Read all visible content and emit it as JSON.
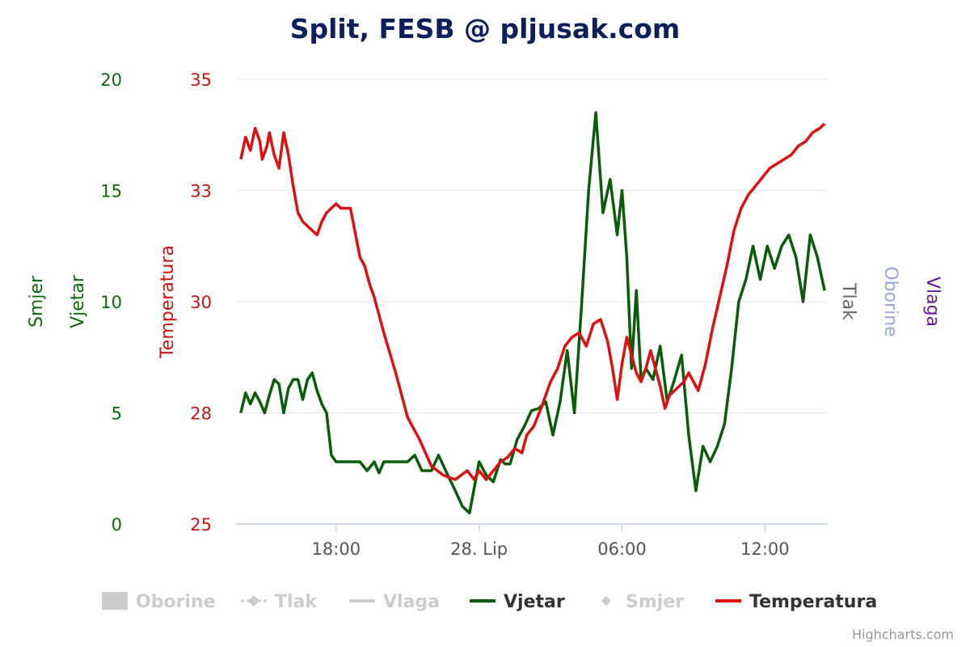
{
  "chart_data": {
    "type": "line",
    "title": "Split, FESB @ pljusak.com",
    "credits": "Highcharts.com",
    "x_ticks": [
      "18:00",
      "28. Lip",
      "06:00",
      "12:00"
    ],
    "axes": {
      "smjer": {
        "title": "Smjer",
        "color": "#0a6b0a",
        "ticks": [
          "0",
          "5",
          "10",
          "15",
          "20"
        ],
        "range": [
          0,
          20
        ]
      },
      "vjetar": {
        "title": "Vjetar",
        "color": "#0a6b0a",
        "range": [
          0,
          20
        ]
      },
      "temperatura": {
        "title": "Temperatura",
        "color": "#cc1111",
        "ticks": [
          "25",
          "28",
          "30",
          "33",
          "35"
        ],
        "range": [
          25,
          35
        ]
      },
      "tlak": {
        "title": "Tlak",
        "color": "#666666"
      },
      "oborine": {
        "title": "Oborine",
        "color": "#9aa6d6"
      },
      "vlaga": {
        "title": "Vlaga",
        "color": "#6a1a9a"
      }
    },
    "legend": [
      {
        "name": "Oborine",
        "active": false,
        "symbol": "rect",
        "color": "#cccccc"
      },
      {
        "name": "Tlak",
        "active": false,
        "symbol": "dash-diamond",
        "color": "#cccccc"
      },
      {
        "name": "Vlaga",
        "active": false,
        "symbol": "line",
        "color": "#cccccc"
      },
      {
        "name": "Vjetar",
        "active": true,
        "symbol": "line",
        "color": "#0a5c0a"
      },
      {
        "name": "Smjer",
        "active": false,
        "symbol": "diamond",
        "color": "#cccccc"
      },
      {
        "name": "Temperatura",
        "active": true,
        "symbol": "line",
        "color": "#dd1111"
      }
    ],
    "series": [
      {
        "name": "Temperatura",
        "axis": "temperatura",
        "color": "#dd1111",
        "x_hours": [
          14.0,
          14.2,
          14.4,
          14.6,
          14.8,
          14.9,
          15.1,
          15.2,
          15.4,
          15.6,
          15.8,
          16.0,
          16.2,
          16.4,
          16.6,
          16.8,
          17.0,
          17.2,
          17.4,
          17.6,
          17.8,
          18.0,
          18.2,
          18.4,
          18.6,
          19.0,
          19.2,
          19.4,
          19.6,
          20.0,
          20.5,
          21.0,
          21.5,
          22.0,
          22.5,
          23.0,
          23.5,
          23.8,
          24.0,
          24.3,
          24.6,
          24.9,
          25.2,
          25.5,
          25.8,
          26.0,
          26.3,
          26.6,
          27.0,
          27.3,
          27.6,
          27.9,
          28.2,
          28.5,
          28.8,
          29.1,
          29.4,
          29.6,
          29.8,
          30.0,
          30.2,
          30.4,
          30.6,
          30.8,
          31.0,
          31.2,
          31.4,
          31.6,
          31.8,
          32.0,
          32.2,
          32.4,
          32.6,
          32.8,
          33.0,
          33.2,
          33.5,
          33.8,
          34.1,
          34.4,
          34.7,
          35.0,
          35.3,
          35.6,
          35.9,
          36.2,
          36.5,
          36.8,
          37.1,
          37.4,
          37.7,
          38.0,
          38.3,
          38.5
        ],
        "values": [
          33.2,
          33.7,
          33.4,
          33.9,
          33.6,
          33.2,
          33.5,
          33.8,
          33.3,
          33.0,
          33.8,
          33.3,
          32.6,
          32.0,
          31.8,
          31.7,
          31.6,
          31.5,
          31.8,
          32.0,
          32.1,
          32.2,
          32.1,
          32.1,
          32.1,
          31.0,
          30.8,
          30.4,
          30.1,
          29.3,
          28.4,
          27.4,
          26.9,
          26.3,
          26.1,
          26.0,
          26.2,
          26.0,
          26.2,
          26.0,
          26.2,
          26.4,
          26.5,
          26.7,
          26.6,
          27.0,
          27.2,
          27.6,
          28.2,
          28.5,
          29.0,
          29.2,
          29.3,
          29.0,
          29.5,
          29.6,
          29.1,
          28.5,
          27.8,
          28.6,
          29.2,
          28.8,
          28.4,
          28.2,
          28.5,
          28.9,
          28.5,
          28.1,
          27.6,
          27.9,
          28.0,
          28.1,
          28.2,
          28.4,
          28.2,
          28.0,
          28.6,
          29.4,
          30.1,
          30.8,
          31.6,
          32.1,
          32.4,
          32.6,
          32.8,
          33.0,
          33.1,
          33.2,
          33.3,
          33.5,
          33.6,
          33.8,
          33.9,
          34.0
        ]
      },
      {
        "name": "Vjetar",
        "axis": "vjetar",
        "color": "#0a5c0a",
        "x_hours": [
          14.0,
          14.2,
          14.4,
          14.6,
          14.8,
          15.0,
          15.2,
          15.4,
          15.6,
          15.8,
          16.0,
          16.2,
          16.4,
          16.6,
          16.8,
          17.0,
          17.2,
          17.4,
          17.6,
          17.8,
          18.0,
          18.5,
          19.0,
          19.3,
          19.6,
          19.8,
          20.0,
          20.5,
          21.0,
          21.3,
          21.6,
          22.0,
          22.3,
          22.6,
          23.0,
          23.3,
          23.6,
          24.0,
          24.3,
          24.6,
          24.9,
          25.1,
          25.3,
          25.6,
          25.9,
          26.2,
          26.5,
          26.8,
          27.1,
          27.4,
          27.7,
          28.0,
          28.3,
          28.6,
          28.9,
          29.2,
          29.5,
          29.8,
          30.0,
          30.2,
          30.4,
          30.6,
          30.8,
          31.0,
          31.3,
          31.6,
          31.9,
          32.2,
          32.5,
          32.8,
          33.1,
          33.4,
          33.7,
          34.0,
          34.3,
          34.6,
          34.9,
          35.2,
          35.5,
          35.8,
          36.1,
          36.4,
          36.7,
          37.0,
          37.3,
          37.6,
          37.9,
          38.2,
          38.5
        ],
        "values": [
          5.0,
          5.9,
          5.4,
          5.9,
          5.5,
          5.0,
          5.8,
          6.5,
          6.3,
          5.0,
          6.1,
          6.5,
          6.5,
          5.6,
          6.5,
          6.8,
          6.0,
          5.4,
          5.0,
          3.1,
          2.8,
          2.8,
          2.8,
          2.4,
          2.8,
          2.3,
          2.8,
          2.8,
          2.8,
          3.1,
          2.4,
          2.4,
          3.1,
          2.4,
          1.5,
          0.8,
          0.5,
          2.8,
          2.2,
          1.9,
          2.9,
          2.7,
          2.7,
          3.8,
          4.4,
          5.1,
          5.2,
          5.5,
          4.0,
          5.5,
          7.8,
          5.0,
          9.8,
          15.0,
          18.5,
          14.0,
          15.5,
          13.0,
          15.0,
          12.0,
          7.0,
          10.5,
          6.5,
          7.0,
          6.5,
          8.0,
          5.5,
          6.5,
          7.6,
          4.0,
          1.5,
          3.5,
          2.8,
          3.5,
          4.5,
          7.0,
          10.0,
          11.0,
          12.5,
          11.0,
          12.5,
          11.5,
          12.5,
          13.0,
          12.0,
          10.0,
          13.0,
          12.0,
          10.5
        ]
      }
    ]
  }
}
